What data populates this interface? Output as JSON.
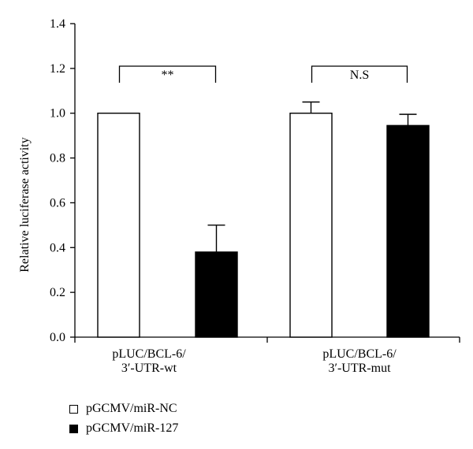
{
  "chart_data": {
    "type": "bar",
    "title": "",
    "xlabel": "",
    "ylabel": "Relative luciferase activity",
    "ylim": [
      0,
      1.4
    ],
    "yticks": [
      "0.0",
      "0.2",
      "0.4",
      "0.6",
      "0.8",
      "1.0",
      "1.2",
      "1.4"
    ],
    "categories": [
      [
        "pLUC/BCL-6/",
        "3′-UTR-wt"
      ],
      [
        "pLUC/BCL-6/",
        "3′-UTR-mut"
      ]
    ],
    "series": [
      {
        "name": "pGCMV/miR-NC",
        "values": [
          1.0,
          1.0
        ],
        "errors": [
          0,
          0.05
        ],
        "color": "#ffffff"
      },
      {
        "name": "pGCMV/miR-127",
        "values": [
          0.38,
          0.945
        ],
        "errors": [
          0.12,
          0.05
        ],
        "color": "#000000"
      }
    ],
    "annotations": [
      {
        "category_index": 0,
        "label": "**",
        "bracket_y": 1.21
      },
      {
        "category_index": 1,
        "label": "N.S",
        "bracket_y": 1.21
      }
    ],
    "legend_position": "bottom-left",
    "grid": false
  }
}
